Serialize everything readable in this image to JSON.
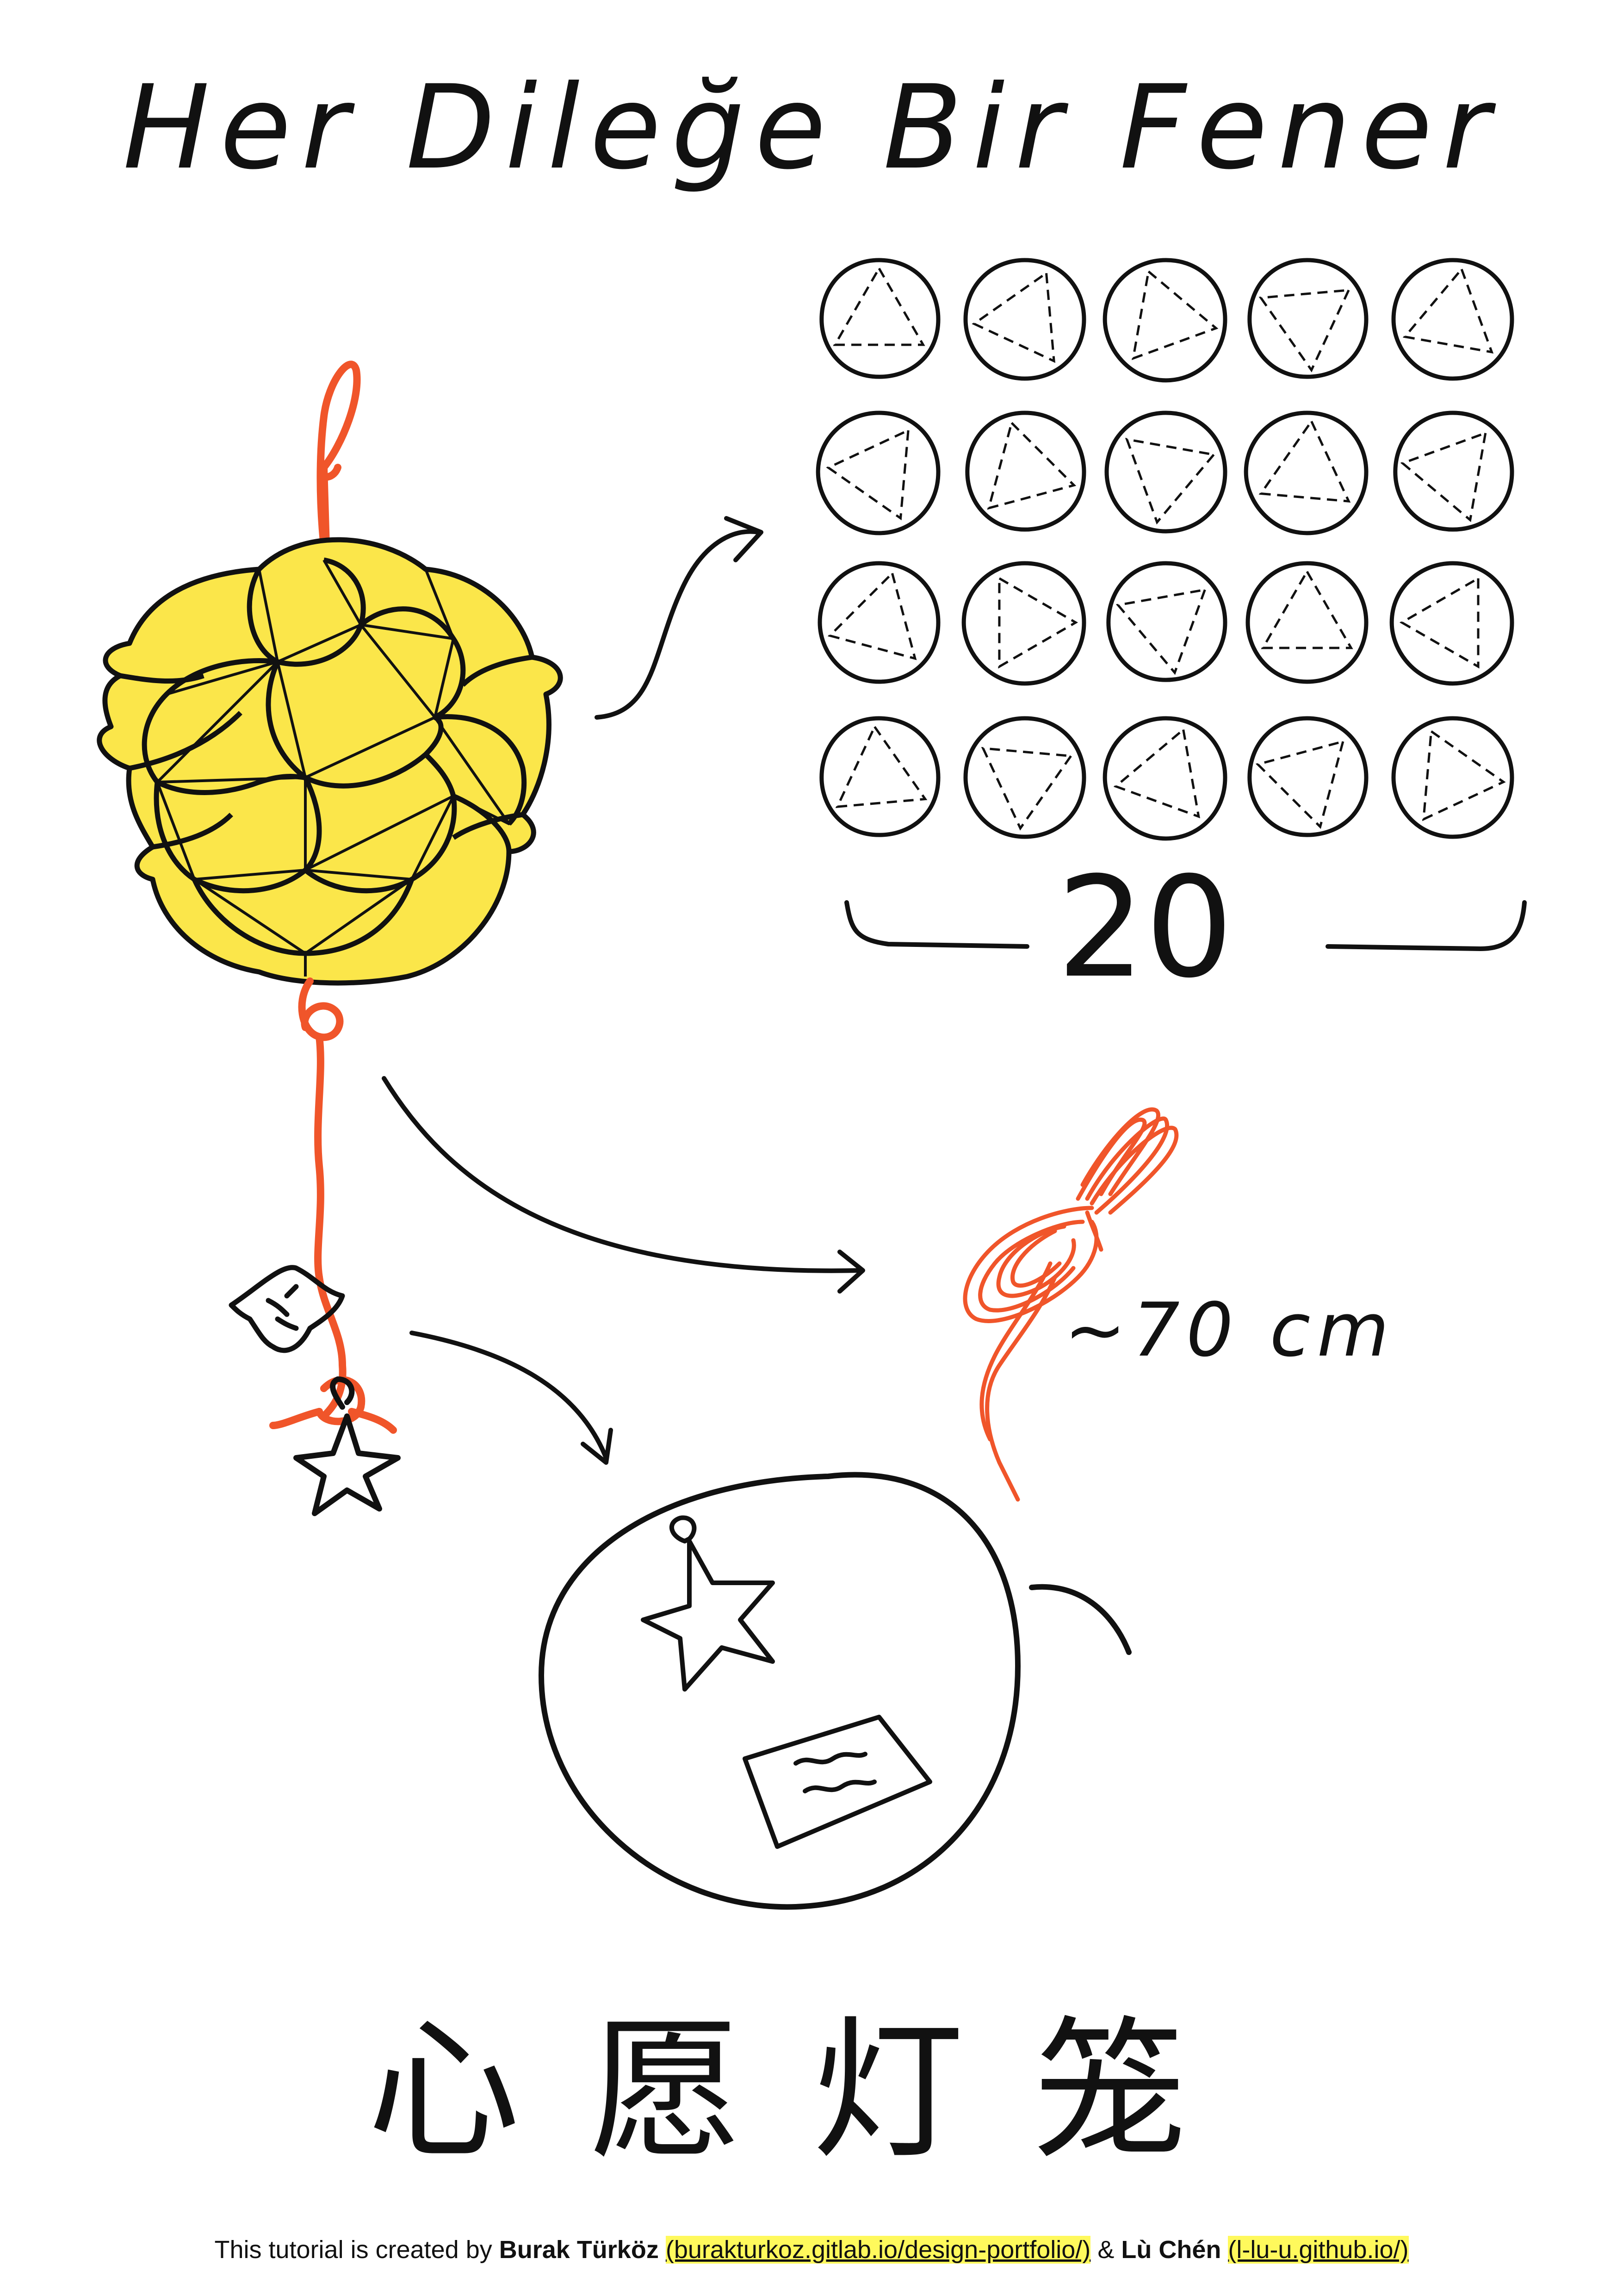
{
  "title": "Her Dileğe Bir Fener",
  "piece_count": "20",
  "cord_length": "~70 cm",
  "chinese_title": "心愿灯笼",
  "credits": {
    "intro": "This tutorial is created by",
    "author1": "Burak Türköz",
    "link1": "(burakturkoz.gitlab.io/design-portfolio/)",
    "and": "&",
    "author2": "Lù Chén",
    "link2": "(l-lu-u.github.io/)"
  },
  "icons": {
    "lantern": "paper-ball-lantern-icon",
    "circle_grid": "paper-circle-pieces-icon",
    "cord": "coiled-cord-icon",
    "charm": "star-charm-icon",
    "wish_note": "wish-note-icon"
  },
  "colors": {
    "lantern_fill": "#fbe64a",
    "cord": "#f0552a",
    "ink": "#111111",
    "link_highlight": "#fff95c"
  }
}
